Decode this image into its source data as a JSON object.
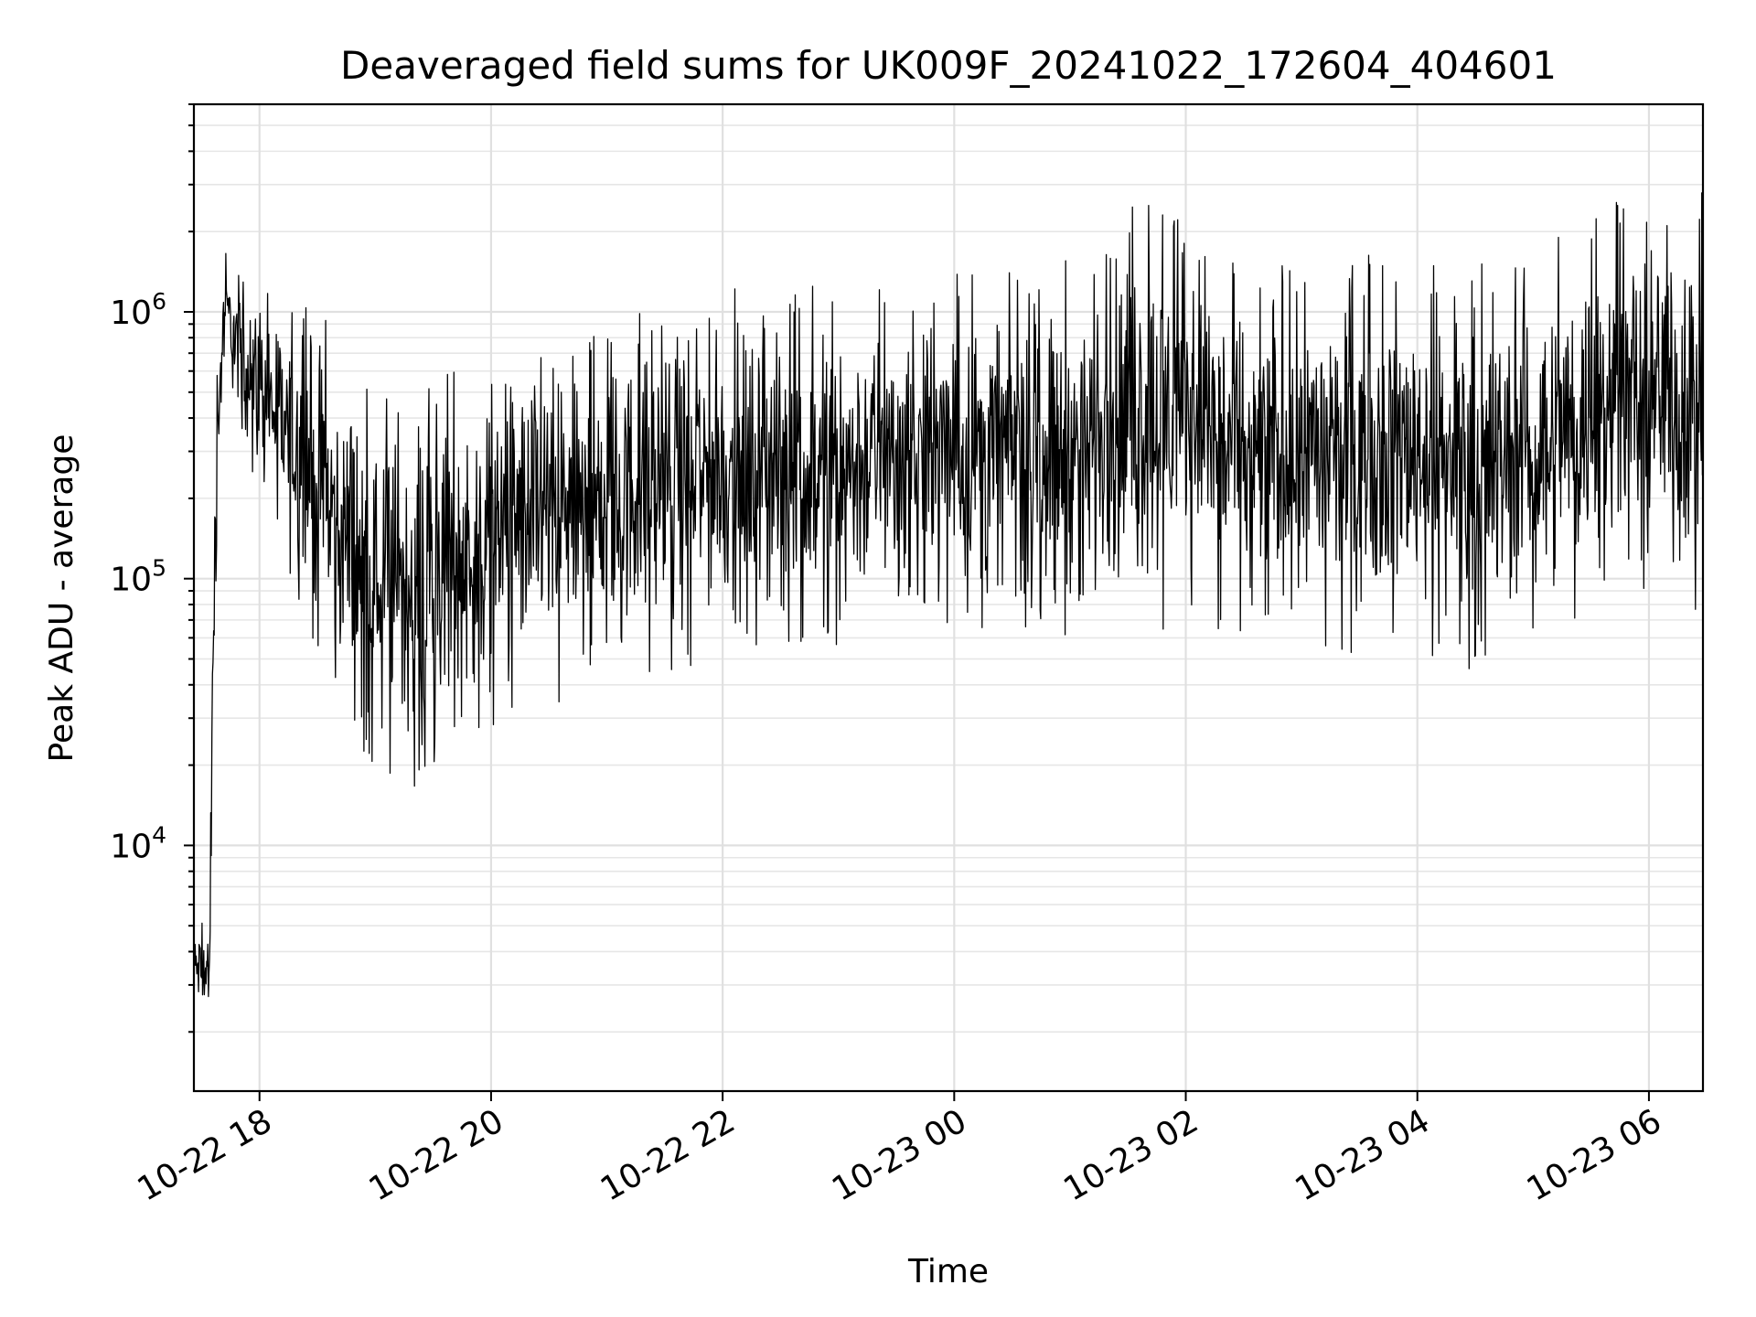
{
  "chart_data": {
    "type": "line",
    "title": "Deaveraged field sums for UK009F_20241022_172604_404601",
    "xlabel": "Time",
    "ylabel": "Peak ADU - average",
    "yscale": "log",
    "ylim": [
      1200,
      6000000
    ],
    "xlim": [
      "2024-10-22T17:26:00",
      "2024-10-23T06:28:00"
    ],
    "grid": true,
    "x_ticks": [
      {
        "value": "2024-10-22T18:00:00",
        "label": "10-22 18"
      },
      {
        "value": "2024-10-22T20:00:00",
        "label": "10-22 20"
      },
      {
        "value": "2024-10-22T22:00:00",
        "label": "10-22 22"
      },
      {
        "value": "2024-10-23T00:00:00",
        "label": "10-23 00"
      },
      {
        "value": "2024-10-23T02:00:00",
        "label": "10-23 02"
      },
      {
        "value": "2024-10-23T04:00:00",
        "label": "10-23 04"
      },
      {
        "value": "2024-10-23T06:00:00",
        "label": "10-23 06"
      }
    ],
    "y_ticks": [
      {
        "value": 10000,
        "base": "10",
        "exp": "4"
      },
      {
        "value": 100000,
        "base": "10",
        "exp": "5"
      },
      {
        "value": 1000000,
        "base": "10",
        "exp": "6"
      }
    ],
    "series": [
      {
        "color": "#000000",
        "envelope": [
          {
            "t": "2024-10-22T17:26:00",
            "low": 2500,
            "high": 5000
          },
          {
            "t": "2024-10-22T17:34:00",
            "low": 1600,
            "high": 6500
          },
          {
            "t": "2024-10-22T17:36:00",
            "low": 30000,
            "high": 100000
          },
          {
            "t": "2024-10-22T17:38:00",
            "low": 130000,
            "high": 1000000
          },
          {
            "t": "2024-10-22T17:42:00",
            "low": 500000,
            "high": 2200000
          },
          {
            "t": "2024-10-22T17:50:00",
            "low": 350000,
            "high": 1300000
          },
          {
            "t": "2024-10-22T18:00:00",
            "low": 200000,
            "high": 1500000
          },
          {
            "t": "2024-10-22T18:15:00",
            "low": 100000,
            "high": 1200000
          },
          {
            "t": "2024-10-22T18:30:00",
            "low": 50000,
            "high": 1000000
          },
          {
            "t": "2024-10-22T18:45:00",
            "low": 25000,
            "high": 800000
          },
          {
            "t": "2024-10-22T19:00:00",
            "low": 20000,
            "high": 500000
          },
          {
            "t": "2024-10-22T19:15:00",
            "low": 15000,
            "high": 600000
          },
          {
            "t": "2024-10-22T19:30:00",
            "low": 20000,
            "high": 700000
          },
          {
            "t": "2024-10-22T19:45:00",
            "low": 22000,
            "high": 600000
          },
          {
            "t": "2024-10-22T20:00:00",
            "low": 28000,
            "high": 700000
          },
          {
            "t": "2024-10-22T20:15:00",
            "low": 30000,
            "high": 900000
          },
          {
            "t": "2024-10-22T20:30:00",
            "low": 32000,
            "high": 900000
          },
          {
            "t": "2024-10-22T21:00:00",
            "low": 40000,
            "high": 1000000
          },
          {
            "t": "2024-10-22T21:30:00",
            "low": 45000,
            "high": 1100000
          },
          {
            "t": "2024-10-22T22:00:00",
            "low": 50000,
            "high": 1200000
          },
          {
            "t": "2024-10-22T22:30:00",
            "low": 55000,
            "high": 1300000
          },
          {
            "t": "2024-10-22T23:00:00",
            "low": 50000,
            "high": 1300000
          },
          {
            "t": "2024-10-22T23:30:00",
            "low": 60000,
            "high": 1400000
          },
          {
            "t": "2024-10-23T00:00:00",
            "low": 60000,
            "high": 1400000
          },
          {
            "t": "2024-10-23T00:30:00",
            "low": 65000,
            "high": 1600000
          },
          {
            "t": "2024-10-23T01:00:00",
            "low": 60000,
            "high": 1600000
          },
          {
            "t": "2024-10-23T01:30:00",
            "low": 55000,
            "high": 2800000
          },
          {
            "t": "2024-10-23T02:00:00",
            "low": 70000,
            "high": 2700000
          },
          {
            "t": "2024-10-23T02:30:00",
            "low": 55000,
            "high": 1500000
          },
          {
            "t": "2024-10-23T03:00:00",
            "low": 55000,
            "high": 1600000
          },
          {
            "t": "2024-10-23T03:30:00",
            "low": 50000,
            "high": 1700000
          },
          {
            "t": "2024-10-23T04:00:00",
            "low": 55000,
            "high": 1800000
          },
          {
            "t": "2024-10-23T04:30:00",
            "low": 40000,
            "high": 1500000
          },
          {
            "t": "2024-10-23T05:00:00",
            "low": 55000,
            "high": 1700000
          },
          {
            "t": "2024-10-23T05:30:00",
            "low": 70000,
            "high": 2500000
          },
          {
            "t": "2024-10-23T06:00:00",
            "low": 80000,
            "high": 3000000
          },
          {
            "t": "2024-10-23T06:28:00",
            "low": 70000,
            "high": 4000000
          }
        ]
      }
    ]
  }
}
